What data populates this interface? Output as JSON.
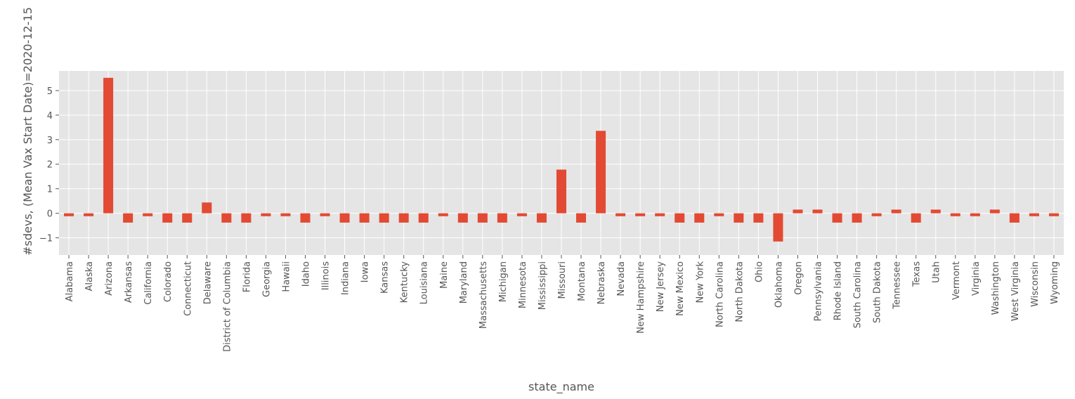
{
  "chart_data": {
    "type": "bar",
    "xlabel": "state_name",
    "ylabel": "#sdevs, (Mean Vax Start Date)=2020-12-15",
    "ylim": [
      -1.7,
      5.8
    ],
    "yticks": [
      -1,
      0,
      1,
      2,
      3,
      4,
      5
    ],
    "grid": true,
    "style": "ggplot",
    "colors": {
      "bar": "#E24A33",
      "plot_background": "#E5E5E5",
      "grid": "#ffffff",
      "text": "#555555"
    },
    "categories": [
      "Alabama",
      "Alaska",
      "Arizona",
      "Arkansas",
      "California",
      "Colorado",
      "Connecticut",
      "Delaware",
      "District of Columbia",
      "Florida",
      "Georgia",
      "Hawaii",
      "Idaho",
      "Illinois",
      "Indiana",
      "Iowa",
      "Kansas",
      "Kentucky",
      "Louisiana",
      "Maine",
      "Maryland",
      "Massachusetts",
      "Michigan",
      "Minnesota",
      "Mississippi",
      "Missouri",
      "Montana",
      "Nebraska",
      "Nevada",
      "New Hampshire",
      "New Jersey",
      "New Mexico",
      "New York",
      "North Carolina",
      "North Dakota",
      "Ohio",
      "Oklahoma",
      "Oregon",
      "Pennsylvania",
      "Rhode Island",
      "South Carolina",
      "South Dakota",
      "Tennessee",
      "Texas",
      "Utah",
      "Vermont",
      "Virginia",
      "Washington",
      "West Virginia",
      "Wisconsin",
      "Wyoming"
    ],
    "values": [
      -0.12,
      -0.12,
      5.52,
      -0.38,
      -0.12,
      -0.38,
      -0.38,
      0.44,
      -0.38,
      -0.38,
      -0.12,
      -0.12,
      -0.38,
      -0.12,
      -0.38,
      -0.38,
      -0.38,
      -0.38,
      -0.38,
      -0.12,
      -0.38,
      -0.38,
      -0.38,
      -0.12,
      -0.38,
      1.78,
      -0.38,
      3.36,
      -0.12,
      -0.12,
      -0.12,
      -0.38,
      -0.38,
      -0.12,
      -0.38,
      -0.38,
      -1.15,
      0.15,
      0.15,
      -0.38,
      -0.38,
      -0.12,
      0.15,
      -0.38,
      0.15,
      -0.12,
      -0.12,
      0.15,
      -0.38,
      -0.12,
      -0.12
    ]
  }
}
